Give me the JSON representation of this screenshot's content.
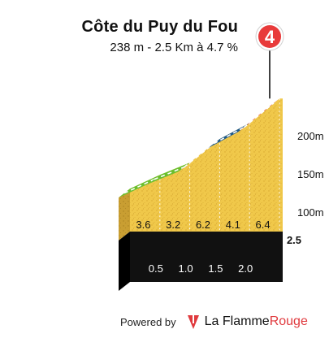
{
  "header": {
    "title": "Côte du Puy du Fou",
    "subtitle": "238 m - 2.5 Km à 4.7 %",
    "climb_number": "4"
  },
  "footer": {
    "powered_by": "Powered by",
    "brand_part1": "La Flamme",
    "brand_part2": "Rouge"
  },
  "colors": {
    "terrain": "#f0c84a",
    "terrain_side": "#c9a035",
    "base": "#111111",
    "marker_red": "#e83a3a",
    "brand_red": "#e03a3e"
  },
  "chart_data": {
    "type": "area",
    "title": "Côte du Puy du Fou",
    "distance_labels": [
      "0.5",
      "1.0",
      "1.5",
      "2.0",
      "2.5"
    ],
    "segment_gradients": [
      "3.6",
      "3.2",
      "6.2",
      "4.1",
      "6.4"
    ],
    "segment_colors": [
      "#6abf2e",
      "#6abf2e",
      "#1f5a8a",
      "#1f5a8a",
      "#e0203a"
    ],
    "distances_km": [
      0,
      0.5,
      1.0,
      1.5,
      2.0,
      2.5
    ],
    "altitudes_m": [
      120,
      138,
      154,
      185,
      206,
      238
    ],
    "y_ticks": [
      {
        "value": 100,
        "label": "100m"
      },
      {
        "value": 150,
        "label": "150m"
      },
      {
        "value": 200,
        "label": "200m"
      }
    ],
    "ylim": [
      35,
      245
    ],
    "xlim": [
      0,
      2.5
    ]
  }
}
